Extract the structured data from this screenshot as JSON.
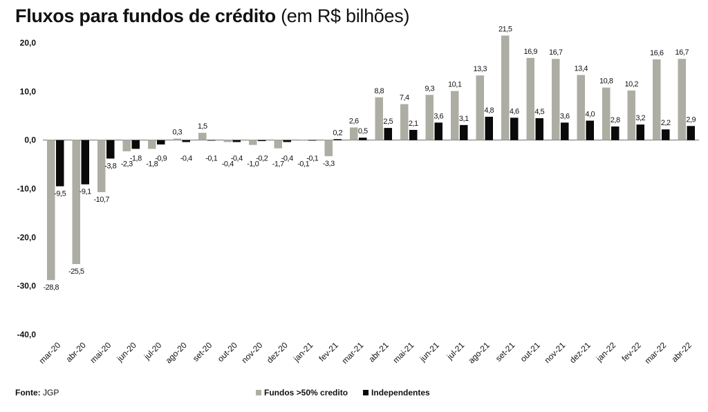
{
  "title": {
    "bold": "Fluxos para fundos de crédito",
    "rest": "(em R$ bilhões)"
  },
  "source": {
    "label": "Fonte:",
    "value": "JGP"
  },
  "colors": {
    "fundos": "#adada3",
    "independentes": "#0a0a0a"
  },
  "chart_data": {
    "type": "bar",
    "title": "Fluxos para fundos de crédito (em R$ bilhões)",
    "ylim": [
      -40,
      20
    ],
    "yticks": [
      "20,0",
      "10,0",
      "0,0",
      "-10,0",
      "-20,0",
      "-30,0",
      "-40,0"
    ],
    "categories": [
      "mar-20",
      "abr-20",
      "mai-20",
      "jun-20",
      "jul-20",
      "ago-20",
      "set-20",
      "out-20",
      "nov-20",
      "dez-20",
      "jan-21",
      "fev-21",
      "mar-21",
      "abr-21",
      "mai-21",
      "jun-21",
      "jul-21",
      "ago-21",
      "set-21",
      "out-21",
      "nov-21",
      "dez-21",
      "jan-22",
      "fev-22",
      "mar-22",
      "abr-22"
    ],
    "series": [
      {
        "name": "Fundos >50% credito",
        "values": [
          -28.8,
          -25.5,
          -10.7,
          -2.3,
          -1.8,
          0.3,
          1.5,
          -0.4,
          -1.0,
          -1.7,
          -0.1,
          -3.3,
          2.6,
          8.8,
          7.4,
          9.3,
          10.1,
          13.3,
          21.5,
          16.9,
          16.7,
          13.4,
          10.8,
          10.2,
          16.6,
          16.7
        ],
        "labels": [
          "-28,8",
          "-25,5",
          "-10,7",
          "-2,3",
          "-1,8",
          "0,3",
          "1,5",
          "-0,4",
          "-1,0",
          "-1,7",
          "-0,1",
          "-3,3",
          "2,6",
          "8,8",
          "7,4",
          "9,3",
          "10,1",
          "13,3",
          "21,5",
          "16,9",
          "16,7",
          "13,4",
          "10,8",
          "10,2",
          "16,6",
          "16,7"
        ]
      },
      {
        "name": "Independentes",
        "values": [
          -9.5,
          -9.1,
          -3.8,
          -1.8,
          -0.9,
          -0.4,
          -0.1,
          -0.4,
          -0.2,
          -0.4,
          -0.1,
          0.2,
          0.5,
          2.5,
          2.1,
          3.6,
          3.1,
          4.8,
          4.6,
          4.5,
          3.6,
          4.0,
          2.8,
          3.2,
          2.2,
          2.9
        ],
        "labels": [
          "-9,5",
          "-9,1",
          "-3,8",
          "-1,8",
          "-0,9",
          "-0,4",
          "-0,1",
          "-0,4",
          "-0,2",
          "-0,4",
          "-0,1",
          "0,2",
          "0,5",
          "2,5",
          "2,1",
          "3,6",
          "3,1",
          "4,8",
          "4,6",
          "4,5",
          "3,6",
          "4,0",
          "2,8",
          "3,2",
          "2,2",
          "2,9"
        ]
      }
    ],
    "legend_position": "bottom-center",
    "grid": false
  }
}
